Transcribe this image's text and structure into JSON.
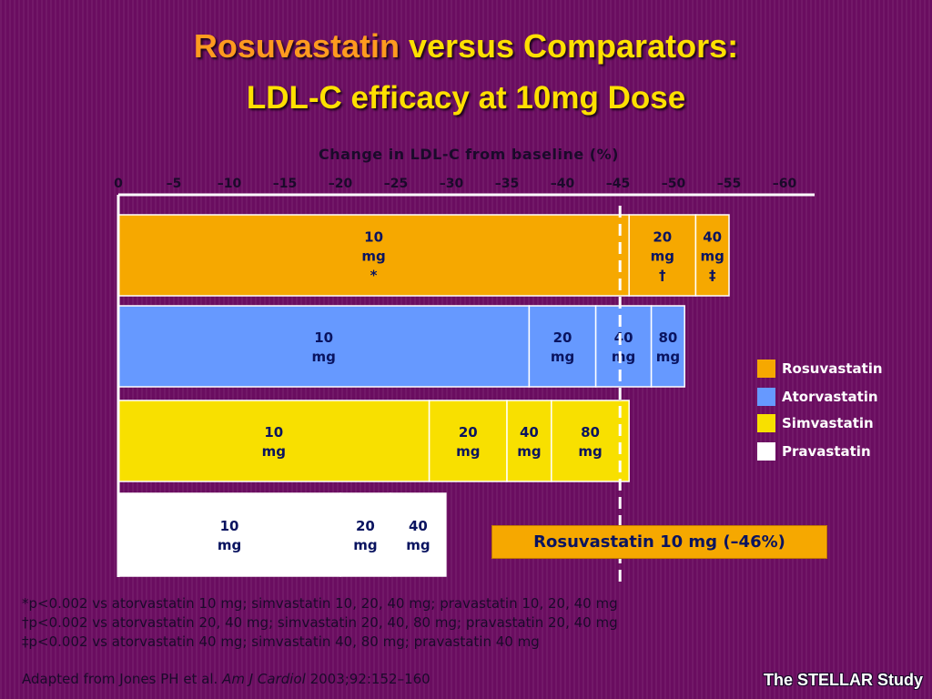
{
  "slide": {
    "title_highlight": "Rosuvastatin",
    "title_rest": " versus Comparators:",
    "title_line2": "LDL-C efficacy at 10mg Dose"
  },
  "legend": [
    {
      "label": "Rosuvastatin",
      "color": "#f6a800"
    },
    {
      "label": "Atorvastatin",
      "color": "#6699ff"
    },
    {
      "label": "Simvastatin",
      "color": "#f8e000"
    },
    {
      "label": "Pravastatin",
      "color": "#ffffff"
    }
  ],
  "callout": "Rosuvastatin 10 mg (–46%)",
  "footnotes": {
    "line1": "*p<0.002 vs atorvastatin 10 mg; simvastatin 10, 20, 40 mg; pravastatin 10, 20, 40 mg",
    "line2": "†p<0.002 vs atorvastatin 20, 40 mg; simvastatin 20, 40, 80 mg; pravastatin 20, 40 mg",
    "line3": "‡p<0.002 vs atorvastatin 40 mg; simvastatin 40, 80 mg; pravastatin 40 mg"
  },
  "source": {
    "prefix": "Adapted from Jones PH et al. ",
    "journal": "Am J Cardiol",
    "suffix": " 2003;92:152–160"
  },
  "study_label": "The STELLAR Study",
  "chart_data": {
    "type": "bar",
    "orientation": "horizontal",
    "stacked": true,
    "title": "Change in LDL-C from baseline (%)",
    "xlim": [
      0,
      -60
    ],
    "x_ticks": [
      "0",
      "–5",
      "–10",
      "–15",
      "–20",
      "–25",
      "–30",
      "–35",
      "–40",
      "–45",
      "–50",
      "–55",
      "–60"
    ],
    "tick_values": [
      0,
      -5,
      -10,
      -15,
      -20,
      -25,
      -30,
      -35,
      -40,
      -45,
      -50,
      -55,
      -60
    ],
    "reference_line": -46,
    "series": [
      {
        "name": "Rosuvastatin",
        "color": "#f6a800",
        "segments": [
          {
            "end": -46,
            "lines": [
              "10",
              "mg",
              "*"
            ]
          },
          {
            "end": -52,
            "lines": [
              "20",
              "mg",
              "†"
            ]
          },
          {
            "end": -55,
            "lines": [
              "40",
              "mg",
              "‡"
            ]
          }
        ]
      },
      {
        "name": "Atorvastatin",
        "color": "#6699ff",
        "segments": [
          {
            "end": -37,
            "lines": [
              "10",
              "mg"
            ]
          },
          {
            "end": -43,
            "lines": [
              "20",
              "mg"
            ]
          },
          {
            "end": -48,
            "lines": [
              "40",
              "mg"
            ]
          },
          {
            "end": -51,
            "lines": [
              "80",
              "mg"
            ]
          }
        ]
      },
      {
        "name": "Simvastatin",
        "color": "#f8e000",
        "segments": [
          {
            "end": -28,
            "lines": [
              "10",
              "mg"
            ]
          },
          {
            "end": -35,
            "lines": [
              "20",
              "mg"
            ]
          },
          {
            "end": -39,
            "lines": [
              "40",
              "mg"
            ]
          },
          {
            "end": -46,
            "lines": [
              "80",
              "mg"
            ]
          }
        ]
      },
      {
        "name": "Pravastatin",
        "color": "#ffffff",
        "segments": [
          {
            "end": -20,
            "lines": [
              "10",
              "mg"
            ]
          },
          {
            "end": -24.5,
            "lines": [
              "20",
              "mg"
            ]
          },
          {
            "end": -29.5,
            "lines": [
              "40",
              "mg"
            ]
          }
        ]
      }
    ]
  }
}
